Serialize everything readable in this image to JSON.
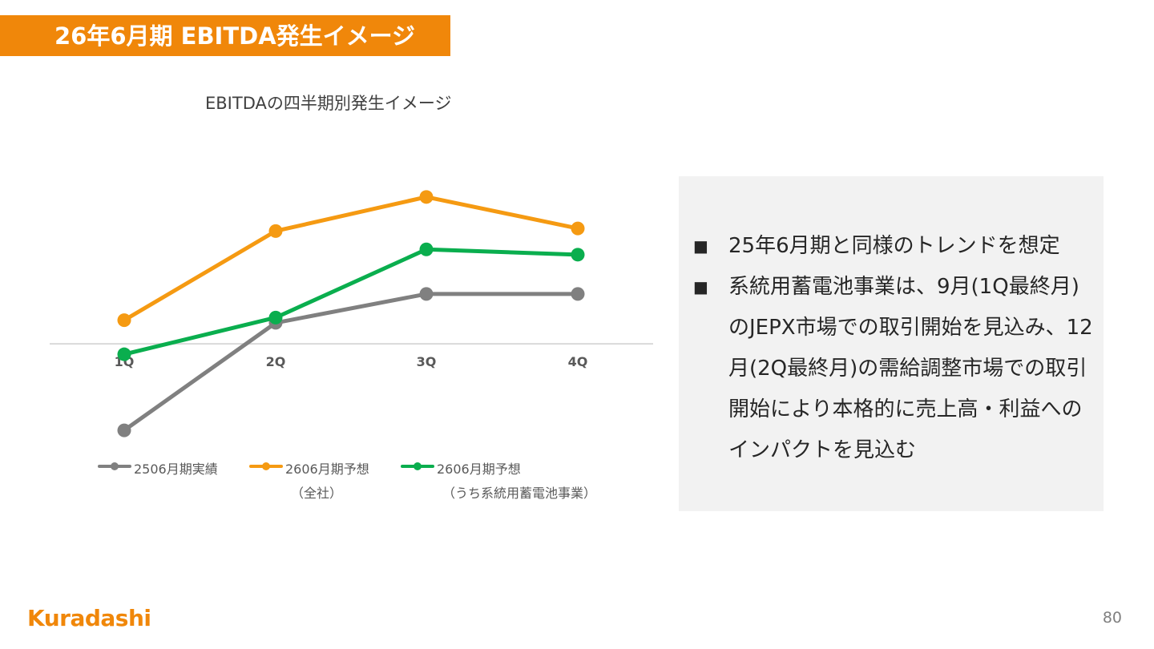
{
  "header": {
    "title": "26年6月期 EBITDA発生イメージ"
  },
  "chart_data": {
    "type": "line",
    "title": "EBITDAの四半期別発生イメージ",
    "categories": [
      "1Q",
      "2Q",
      "3Q",
      "4Q"
    ],
    "ylim": [
      -4,
      7
    ],
    "series": [
      {
        "name": "2506月期実績",
        "color": "#808080",
        "values": [
          -3.3,
          0.8,
          1.9,
          1.9
        ]
      },
      {
        "name": "2606月期予想\n（全社）",
        "color": "#f59a12",
        "values": [
          0.9,
          4.3,
          5.6,
          4.4
        ]
      },
      {
        "name": "2606月期予想\n（うち系統用蓄電池事業）",
        "color": "#0aae4e",
        "values": [
          -0.4,
          1.0,
          3.6,
          3.4
        ]
      }
    ],
    "legend": [
      {
        "line1": "2506月期実績",
        "line2": ""
      },
      {
        "line1": "2606月期予想",
        "line2": "（全社）"
      },
      {
        "line1": "2606月期予想",
        "line2": "（うち系統用蓄電池事業）"
      }
    ],
    "grid": false,
    "legend_position": "bottom"
  },
  "panel": {
    "bullet_mark": "■",
    "bullets": [
      "25年6月期と同様のトレンドを想定",
      "系統用蓄電池事業は、9月(1Q最終月)のJEPX市場での取引開始を見込み、12月(2Q最終月)の需給調整市場での取引開始により本格的に売上高・利益へのインパクトを見込む"
    ]
  },
  "footer": {
    "logo": "Kuradashi",
    "page_number": "80"
  }
}
